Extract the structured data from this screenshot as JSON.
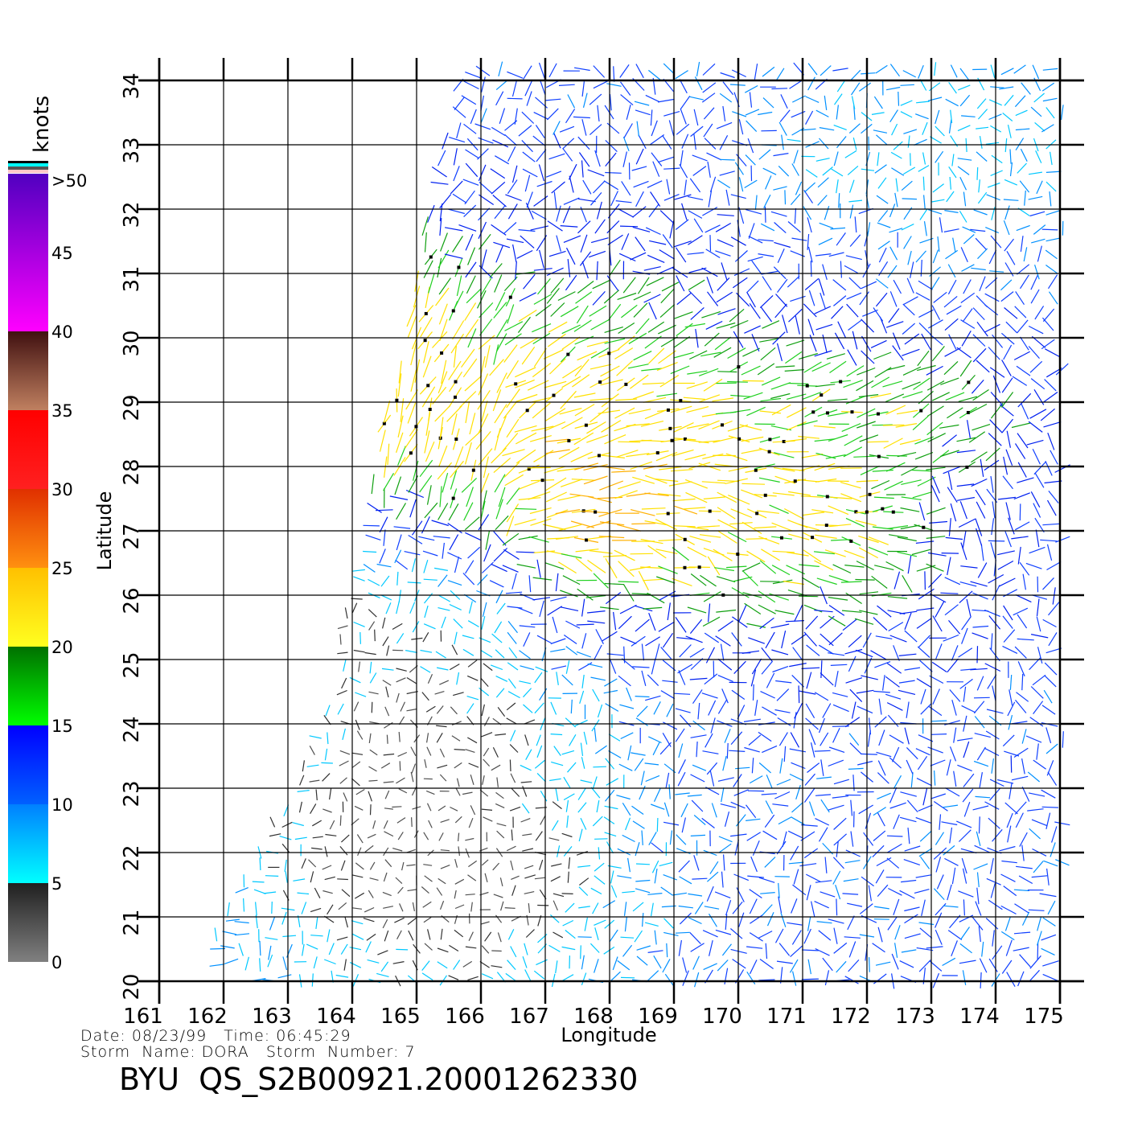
{
  "chart_data": {
    "type": "scatter",
    "xlabel": "Longitude",
    "ylabel": "Latitude",
    "xlim": [
      161,
      175
    ],
    "ylim": [
      20,
      34
    ],
    "x_ticks": [
      "161",
      "162",
      "163",
      "164",
      "165",
      "166",
      "167",
      "168",
      "169",
      "170",
      "171",
      "172",
      "173",
      "174",
      "175"
    ],
    "y_ticks": [
      "20",
      "21",
      "22",
      "23",
      "24",
      "25",
      "26",
      "27",
      "28",
      "29",
      "30",
      "31",
      "32",
      "33",
      "34"
    ],
    "grid": true,
    "colorbar": {
      "title": "knots",
      "labels": [
        "0",
        "5",
        "10",
        "15",
        "20",
        "25",
        "30",
        "35",
        "40",
        "45",
        ">50"
      ],
      "colors": {
        "0-5": [
          "#808080",
          "#202020"
        ],
        "5-10": [
          "#00ffff",
          "#0080ff"
        ],
        "10-15": [
          "#0060ff",
          "#0000ff"
        ],
        "15-20": [
          "#00ff00",
          "#007000"
        ],
        "20-25": [
          "#ffff20",
          "#ffc000"
        ],
        "25-30": [
          "#ff9010",
          "#e03000"
        ],
        "30-35": [
          "#ff2020",
          "#ff0000"
        ],
        "35-40": [
          "#c08060",
          "#401010"
        ],
        "40-50": [
          "#ff00ff",
          "#5000c0"
        ]
      }
    },
    "series_description_colors": {
      "low": "#303030",
      "cyan": "#00c8ff",
      "blue": "#0030ff",
      "green": "#10b010",
      "yellow": "#ffd000",
      "orange": "#ff7000"
    }
  },
  "footer": {
    "date_line": "Date: 08/23/99   Time: 06:45:29",
    "storm_line": "Storm  Name: DORA   Storm  Number: 7",
    "title": "BYU  QS_S2B00921.20001262330"
  }
}
